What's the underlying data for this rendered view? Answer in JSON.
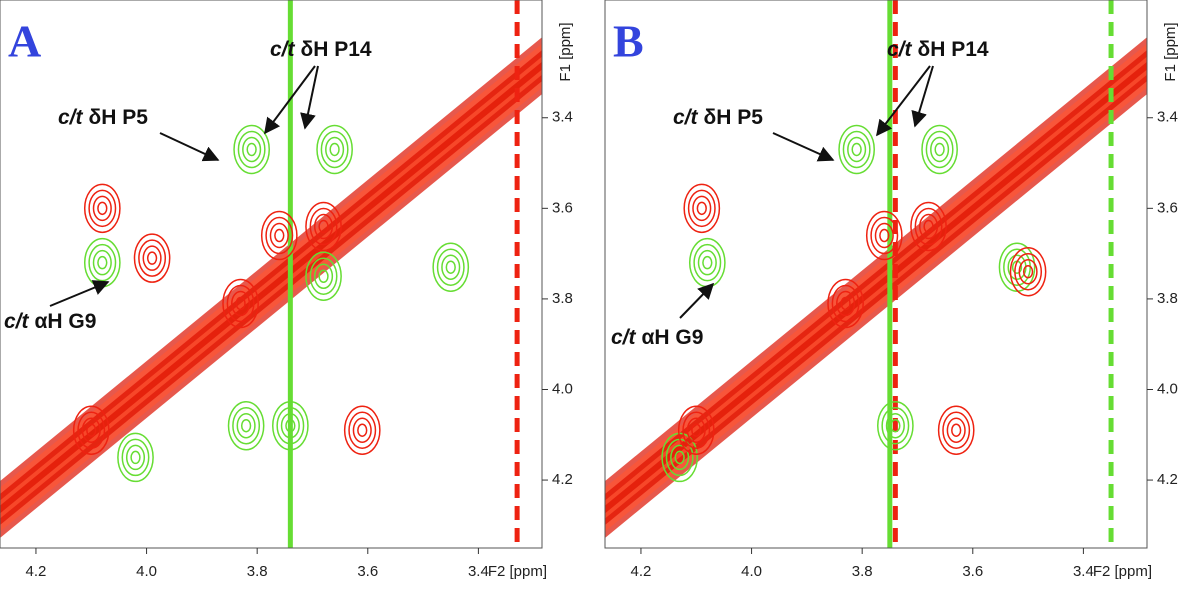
{
  "chart_data": [
    {
      "type": "contour",
      "label": "A",
      "xlabel": "F2 [ppm]",
      "ylabel": "F1 [ppm]",
      "xlim": [
        4.265,
        3.285
      ],
      "ylim": [
        3.14,
        4.35
      ],
      "xticks": [
        4.2,
        {
          "value": 4,
          "label": "4.0"
        },
        3.8,
        3.6,
        3.4
      ],
      "yticks": [
        3.4,
        3.6,
        3.8,
        {
          "value": 4,
          "label": "4.0"
        },
        4.2
      ],
      "annotations": [
        {
          "prefix": "c/t",
          "text": "δH P5"
        },
        {
          "prefix": "c/t",
          "text": "δH P14"
        },
        {
          "prefix": "c/t",
          "text": "αH G9"
        }
      ],
      "vlines": [
        {
          "color": "#66dd33",
          "x": 3.74
        },
        {
          "color": "#ee2211",
          "x": 3.33
        }
      ],
      "series": [
        {
          "color": "#66dd33",
          "x": [
            4.08,
            3.81,
            3.66,
            3.45,
            3.74,
            3.82,
            3.68,
            4.02
          ],
          "y": [
            3.72,
            3.47,
            3.47,
            3.73,
            4.08,
            4.08,
            3.75,
            4.15
          ]
        },
        {
          "color": "#ee2211",
          "x": [
            4.08,
            3.99,
            3.61,
            3.76,
            3.68,
            4.1,
            3.83
          ],
          "y": [
            3.6,
            3.71,
            4.09,
            3.66,
            3.64,
            4.09,
            3.81
          ]
        }
      ]
    },
    {
      "type": "contour",
      "label": "B",
      "xlabel": "F2 [ppm]",
      "ylabel": "F1 [ppm]",
      "xlim": [
        4.265,
        3.285
      ],
      "ylim": [
        3.14,
        4.35
      ],
      "xticks": [
        4.2,
        {
          "value": 4,
          "label": "4.0"
        },
        3.8,
        3.6,
        3.4
      ],
      "yticks": [
        3.4,
        3.6,
        3.8,
        {
          "value": 4,
          "label": "4.0"
        },
        4.2
      ],
      "annotations": [
        {
          "prefix": "c/t",
          "text": "δH P5"
        },
        {
          "prefix": "c/t",
          "text": "δH P14"
        },
        {
          "prefix": "c/t",
          "text": "αH G9"
        }
      ],
      "vlines": [
        {
          "color": "#66dd33",
          "x": 3.75
        },
        {
          "color": "#ee2211",
          "x": 3.74
        },
        {
          "color": "#66dd33",
          "x": 3.35
        }
      ],
      "series": [
        {
          "color": "#66dd33",
          "x": [
            4.08,
            3.81,
            3.66,
            3.52,
            3.74,
            4.13
          ],
          "y": [
            3.72,
            3.47,
            3.47,
            3.73,
            4.08,
            4.15
          ]
        },
        {
          "color": "#ee2211",
          "x": [
            4.09,
            3.63,
            3.76,
            3.68,
            4.1,
            3.83,
            3.5
          ],
          "y": [
            3.6,
            4.09,
            3.66,
            3.64,
            4.09,
            3.81,
            3.74
          ]
        }
      ]
    }
  ]
}
